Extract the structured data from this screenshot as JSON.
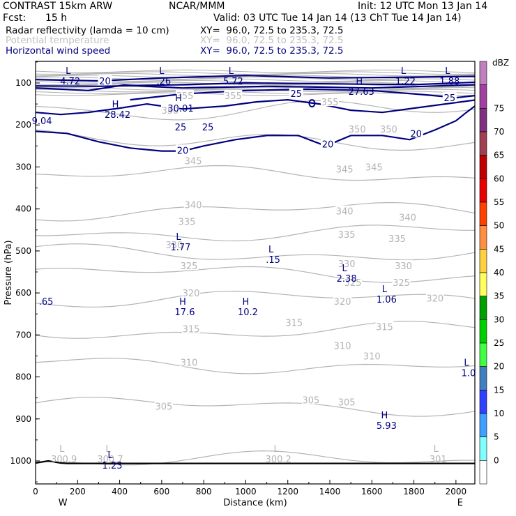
{
  "header": {
    "model": "CONTRAST 15km ARW",
    "center": "NCAR/MMM",
    "init": "Init: 12 UTC Mon 13 Jan 14",
    "fcst_label": "Fcst:",
    "fcst_value": "15 h",
    "valid": "Valid: 03 UTC Tue 14 Jan 14 (13 ChT Tue 14 Jan 14)"
  },
  "fields": [
    {
      "name": "Radar reflectivity (lamda = 10 cm)",
      "xy": "XY=  96.0, 72.5 to 235.3, 72.5",
      "color": "#000000"
    },
    {
      "name": "Potential temperature",
      "xy": "XY=  96.0, 72.5 to 235.3, 72.5",
      "color": "#c0c0c0"
    },
    {
      "name": "Horizontal wind speed",
      "xy": "XY=  96.0, 72.5 to 235.3, 72.5",
      "color": "#000080"
    }
  ],
  "chart_data": {
    "type": "contour",
    "xlabel": "Distance (km)",
    "ylabel": "Pressure (hPa)",
    "x_ticks": [
      0,
      200,
      400,
      600,
      800,
      1000,
      1200,
      1400,
      1600,
      1800,
      2000
    ],
    "xlim": [
      0,
      2090
    ],
    "y_ticks": [
      100,
      200,
      300,
      400,
      500,
      600,
      700,
      800,
      900,
      1000
    ],
    "ylim": [
      1050,
      70
    ],
    "west_label": "W",
    "east_label": "E",
    "theta_color": "#b4b4b4",
    "wind_color": "#000080",
    "theta_labels": [
      {
        "t": "355",
        "x": 710,
        "p": 130
      },
      {
        "t": "355",
        "x": 940,
        "p": 130
      },
      {
        "t": "355",
        "x": 1400,
        "p": 145
      },
      {
        "t": "350",
        "x": 640,
        "p": 165
      },
      {
        "t": "350",
        "x": 1530,
        "p": 210
      },
      {
        "t": "350",
        "x": 1680,
        "p": 210
      },
      {
        "t": "345",
        "x": 750,
        "p": 285
      },
      {
        "t": "345",
        "x": 1470,
        "p": 305
      },
      {
        "t": "345",
        "x": 1610,
        "p": 300
      },
      {
        "t": "340",
        "x": 750,
        "p": 390
      },
      {
        "t": "340",
        "x": 1470,
        "p": 405
      },
      {
        "t": "340",
        "x": 1770,
        "p": 420
      },
      {
        "t": "335",
        "x": 720,
        "p": 430
      },
      {
        "t": "335",
        "x": 1480,
        "p": 460
      },
      {
        "t": "335",
        "x": 1720,
        "p": 470
      },
      {
        "t": "330",
        "x": 660,
        "p": 485
      },
      {
        "t": "330",
        "x": 1480,
        "p": 530
      },
      {
        "t": "330",
        "x": 1750,
        "p": 535
      },
      {
        "t": "325",
        "x": 730,
        "p": 535
      },
      {
        "t": "325",
        "x": 1510,
        "p": 575
      },
      {
        "t": "325",
        "x": 1740,
        "p": 575
      },
      {
        "t": "320",
        "x": 740,
        "p": 600
      },
      {
        "t": "320",
        "x": 1460,
        "p": 620
      },
      {
        "t": "320",
        "x": 1900,
        "p": 612
      },
      {
        "t": "315",
        "x": 740,
        "p": 685
      },
      {
        "t": "315",
        "x": 1230,
        "p": 670
      },
      {
        "t": "315",
        "x": 1660,
        "p": 680
      },
      {
        "t": "310",
        "x": 730,
        "p": 765
      },
      {
        "t": "310",
        "x": 1460,
        "p": 725
      },
      {
        "t": "310",
        "x": 1600,
        "p": 750
      },
      {
        "t": "305",
        "x": 610,
        "p": 870
      },
      {
        "t": "305",
        "x": 1310,
        "p": 855
      },
      {
        "t": "305",
        "x": 1480,
        "p": 860
      }
    ],
    "wind_labels": [
      {
        "t": "20",
        "x": 330,
        "p": 95
      },
      {
        "t": "25",
        "x": 1240,
        "p": 125
      },
      {
        "t": "25",
        "x": 1970,
        "p": 135
      },
      {
        "t": "25",
        "x": 690,
        "p": 205
      },
      {
        "t": "25",
        "x": 820,
        "p": 205
      },
      {
        "t": "20",
        "x": 1390,
        "p": 245
      },
      {
        "t": "20",
        "x": 1810,
        "p": 220
      },
      {
        "t": "20",
        "x": 700,
        "p": 260
      }
    ],
    "extrema": [
      {
        "k": "L",
        "v": "4.72",
        "x": 165,
        "p": 85,
        "c": "wind"
      },
      {
        "k": "L",
        "v": ".26",
        "x": 610,
        "p": 85,
        "c": "wind"
      },
      {
        "k": "L",
        "v": "5.72",
        "x": 940,
        "p": 85,
        "c": "wind"
      },
      {
        "k": "L",
        "v": "1.22",
        "x": 1760,
        "p": 85,
        "c": "wind"
      },
      {
        "k": "L",
        "v": "1.88",
        "x": 1970,
        "p": 85,
        "c": "wind"
      },
      {
        "k": "H",
        "v": "27.63",
        "x": 1550,
        "p": 110,
        "c": "wind"
      },
      {
        "k": "H",
        "v": "28.42",
        "x": 390,
        "p": 165,
        "c": "wind"
      },
      {
        "k": "H",
        "v": "30.01",
        "x": 690,
        "p": 150,
        "c": "wind"
      },
      {
        "k": "",
        "v": "9.04",
        "x": 30,
        "p": 180,
        "c": "wind"
      },
      {
        "k": "L",
        "v": "1.77",
        "x": 690,
        "p": 480,
        "c": "wind"
      },
      {
        "k": "L",
        "v": ".15",
        "x": 1130,
        "p": 510,
        "c": "wind"
      },
      {
        "k": "L",
        "v": "2.38",
        "x": 1480,
        "p": 555,
        "c": "wind"
      },
      {
        "k": "L",
        "v": "1.06",
        "x": 1670,
        "p": 605,
        "c": "wind"
      },
      {
        "k": "",
        "v": ".65",
        "x": 50,
        "p": 610,
        "c": "wind"
      },
      {
        "k": "H",
        "v": "17.6",
        "x": 710,
        "p": 635,
        "c": "wind"
      },
      {
        "k": "H",
        "v": "10.2",
        "x": 1010,
        "p": 635,
        "c": "wind"
      },
      {
        "k": "L",
        "v": "1.0",
        "x": 2060,
        "p": 780,
        "c": "wind"
      },
      {
        "k": "H",
        "v": "5.93",
        "x": 1670,
        "p": 905,
        "c": "wind"
      },
      {
        "k": "L",
        "v": "300.9",
        "x": 135,
        "p": 985,
        "c": "theta"
      },
      {
        "k": "L",
        "v": "300.7",
        "x": 355,
        "p": 985,
        "c": "theta"
      },
      {
        "k": "L",
        "v": "300.2",
        "x": 1155,
        "p": 985,
        "c": "theta"
      },
      {
        "k": "L",
        "v": "301",
        "x": 1915,
        "p": 985,
        "c": "theta"
      },
      {
        "k": "L",
        "v": "1.23",
        "x": 365,
        "p": 1000,
        "c": "wind"
      }
    ]
  },
  "colorbar": {
    "unit": "dBZ",
    "labels": [
      "75",
      "70",
      "65",
      "60",
      "55",
      "50",
      "45",
      "40",
      "35",
      "30",
      "25",
      "20",
      "15",
      "10",
      "5",
      "0"
    ],
    "colors": [
      "#c080c0",
      "#a040a0",
      "#803080",
      "#a04050",
      "#c00000",
      "#e80000",
      "#ff4000",
      "#ff9040",
      "#ffd040",
      "#ffff60",
      "#00a000",
      "#00d000",
      "#40ff40",
      "#4080c0",
      "#3040ff",
      "#40a0ff",
      "#80ffff",
      "#ffffff"
    ]
  }
}
